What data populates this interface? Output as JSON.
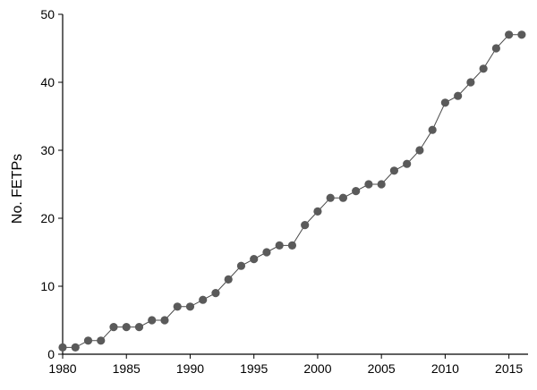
{
  "chart_data": {
    "type": "line",
    "title": "",
    "xlabel": "",
    "ylabel": "No. FETPs",
    "xlim": [
      1980,
      2016.5
    ],
    "ylim": [
      0,
      50
    ],
    "x_ticks": [
      "1980",
      "1985",
      "1990",
      "1995",
      "2000",
      "2005",
      "2010",
      "2015"
    ],
    "y_ticks": [
      "0",
      "10",
      "20",
      "30",
      "40",
      "50"
    ],
    "grid": false,
    "legend": "none",
    "colors": {
      "marker": "#5a5a5a",
      "line": "#4a4a4a",
      "axis": "#000000"
    },
    "series": [
      {
        "x": [
          1980,
          1981,
          1982,
          1983,
          1984,
          1985,
          1986,
          1987,
          1988,
          1989,
          1990,
          1991,
          1992,
          1993,
          1994,
          1995,
          1996,
          1997,
          1998,
          1999,
          2000,
          2001,
          2002,
          2003,
          2004,
          2005,
          2006,
          2007,
          2008,
          2009,
          2010,
          2011,
          2012,
          2013,
          2014,
          2015,
          2016
        ],
        "values": [
          1,
          1,
          2,
          2,
          4,
          4,
          4,
          5,
          5,
          7,
          7,
          8,
          9,
          11,
          13,
          14,
          15,
          16,
          16,
          19,
          21,
          23,
          23,
          24,
          25,
          25,
          27,
          28,
          30,
          33,
          37,
          38,
          40,
          42,
          45,
          47,
          47
        ]
      }
    ]
  }
}
